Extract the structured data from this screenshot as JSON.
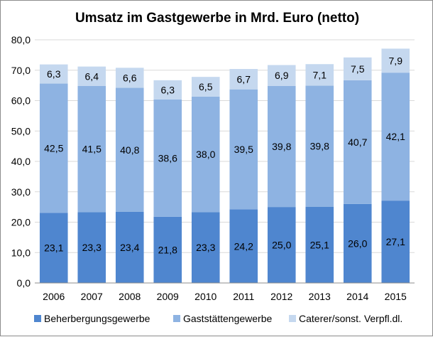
{
  "chart_data": {
    "type": "bar",
    "stacked": true,
    "title": "Umsatz im Gastgewerbe in Mrd. Euro (netto)",
    "xlabel": "",
    "ylabel": "",
    "ylim": [
      0,
      80
    ],
    "yticks": [
      "0,0",
      "10,0",
      "20,0",
      "30,0",
      "40,0",
      "50,0",
      "60,0",
      "70,0",
      "80,0"
    ],
    "grid": true,
    "legend_position": "bottom",
    "categories": [
      "2006",
      "2007",
      "2008",
      "2009",
      "2010",
      "2011",
      "2012",
      "2013",
      "2014",
      "2015"
    ],
    "series": [
      {
        "name": "Beherbergungsgewerbe",
        "color": "#4f86cf",
        "values": [
          23.1,
          23.3,
          23.4,
          21.8,
          23.3,
          24.2,
          25.0,
          25.1,
          26.0,
          27.1
        ],
        "labels": [
          "23,1",
          "23,3",
          "23,4",
          "21,8",
          "23,3",
          "24,2",
          "25,0",
          "25,1",
          "26,0",
          "27,1"
        ]
      },
      {
        "name": "Gaststättengewerbe",
        "color": "#8eb3e2",
        "values": [
          42.5,
          41.5,
          40.8,
          38.6,
          38.0,
          39.5,
          39.8,
          39.8,
          40.7,
          42.1
        ],
        "labels": [
          "42,5",
          "41,5",
          "40,8",
          "38,6",
          "38,0",
          "39,5",
          "39,8",
          "39,8",
          "40,7",
          "42,1"
        ]
      },
      {
        "name": "Caterer/sonst. Verpfl.dl.",
        "color": "#c5d8ef",
        "values": [
          6.3,
          6.4,
          6.6,
          6.3,
          6.5,
          6.7,
          6.9,
          7.1,
          7.5,
          7.9
        ],
        "labels": [
          "6,3",
          "6,4",
          "6,6",
          "6,3",
          "6,5",
          "6,7",
          "6,9",
          "7,1",
          "7,5",
          "7,9"
        ]
      }
    ]
  }
}
